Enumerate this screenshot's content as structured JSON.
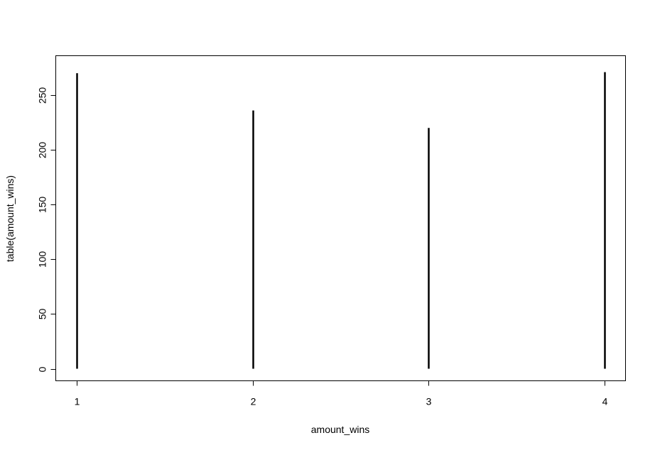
{
  "chart_data": {
    "type": "bar",
    "plot_style": "histogram-lines",
    "title": "",
    "xlabel": "amount_wins",
    "ylabel": "table(amount_wins)",
    "categories": [
      "1",
      "2",
      "3",
      "4"
    ],
    "x": [
      1,
      2,
      3,
      4
    ],
    "values": [
      270,
      236,
      220,
      271
    ],
    "xlim": [
      0.88,
      4.12
    ],
    "ylim": [
      -11,
      286
    ],
    "x_ticks": [
      1,
      2,
      3,
      4
    ],
    "y_ticks": [
      0,
      50,
      100,
      150,
      200,
      250
    ],
    "grid": false,
    "legend": "none",
    "colors": {
      "bars": "#000000",
      "axes": "#000000",
      "background": "#ffffff"
    }
  }
}
